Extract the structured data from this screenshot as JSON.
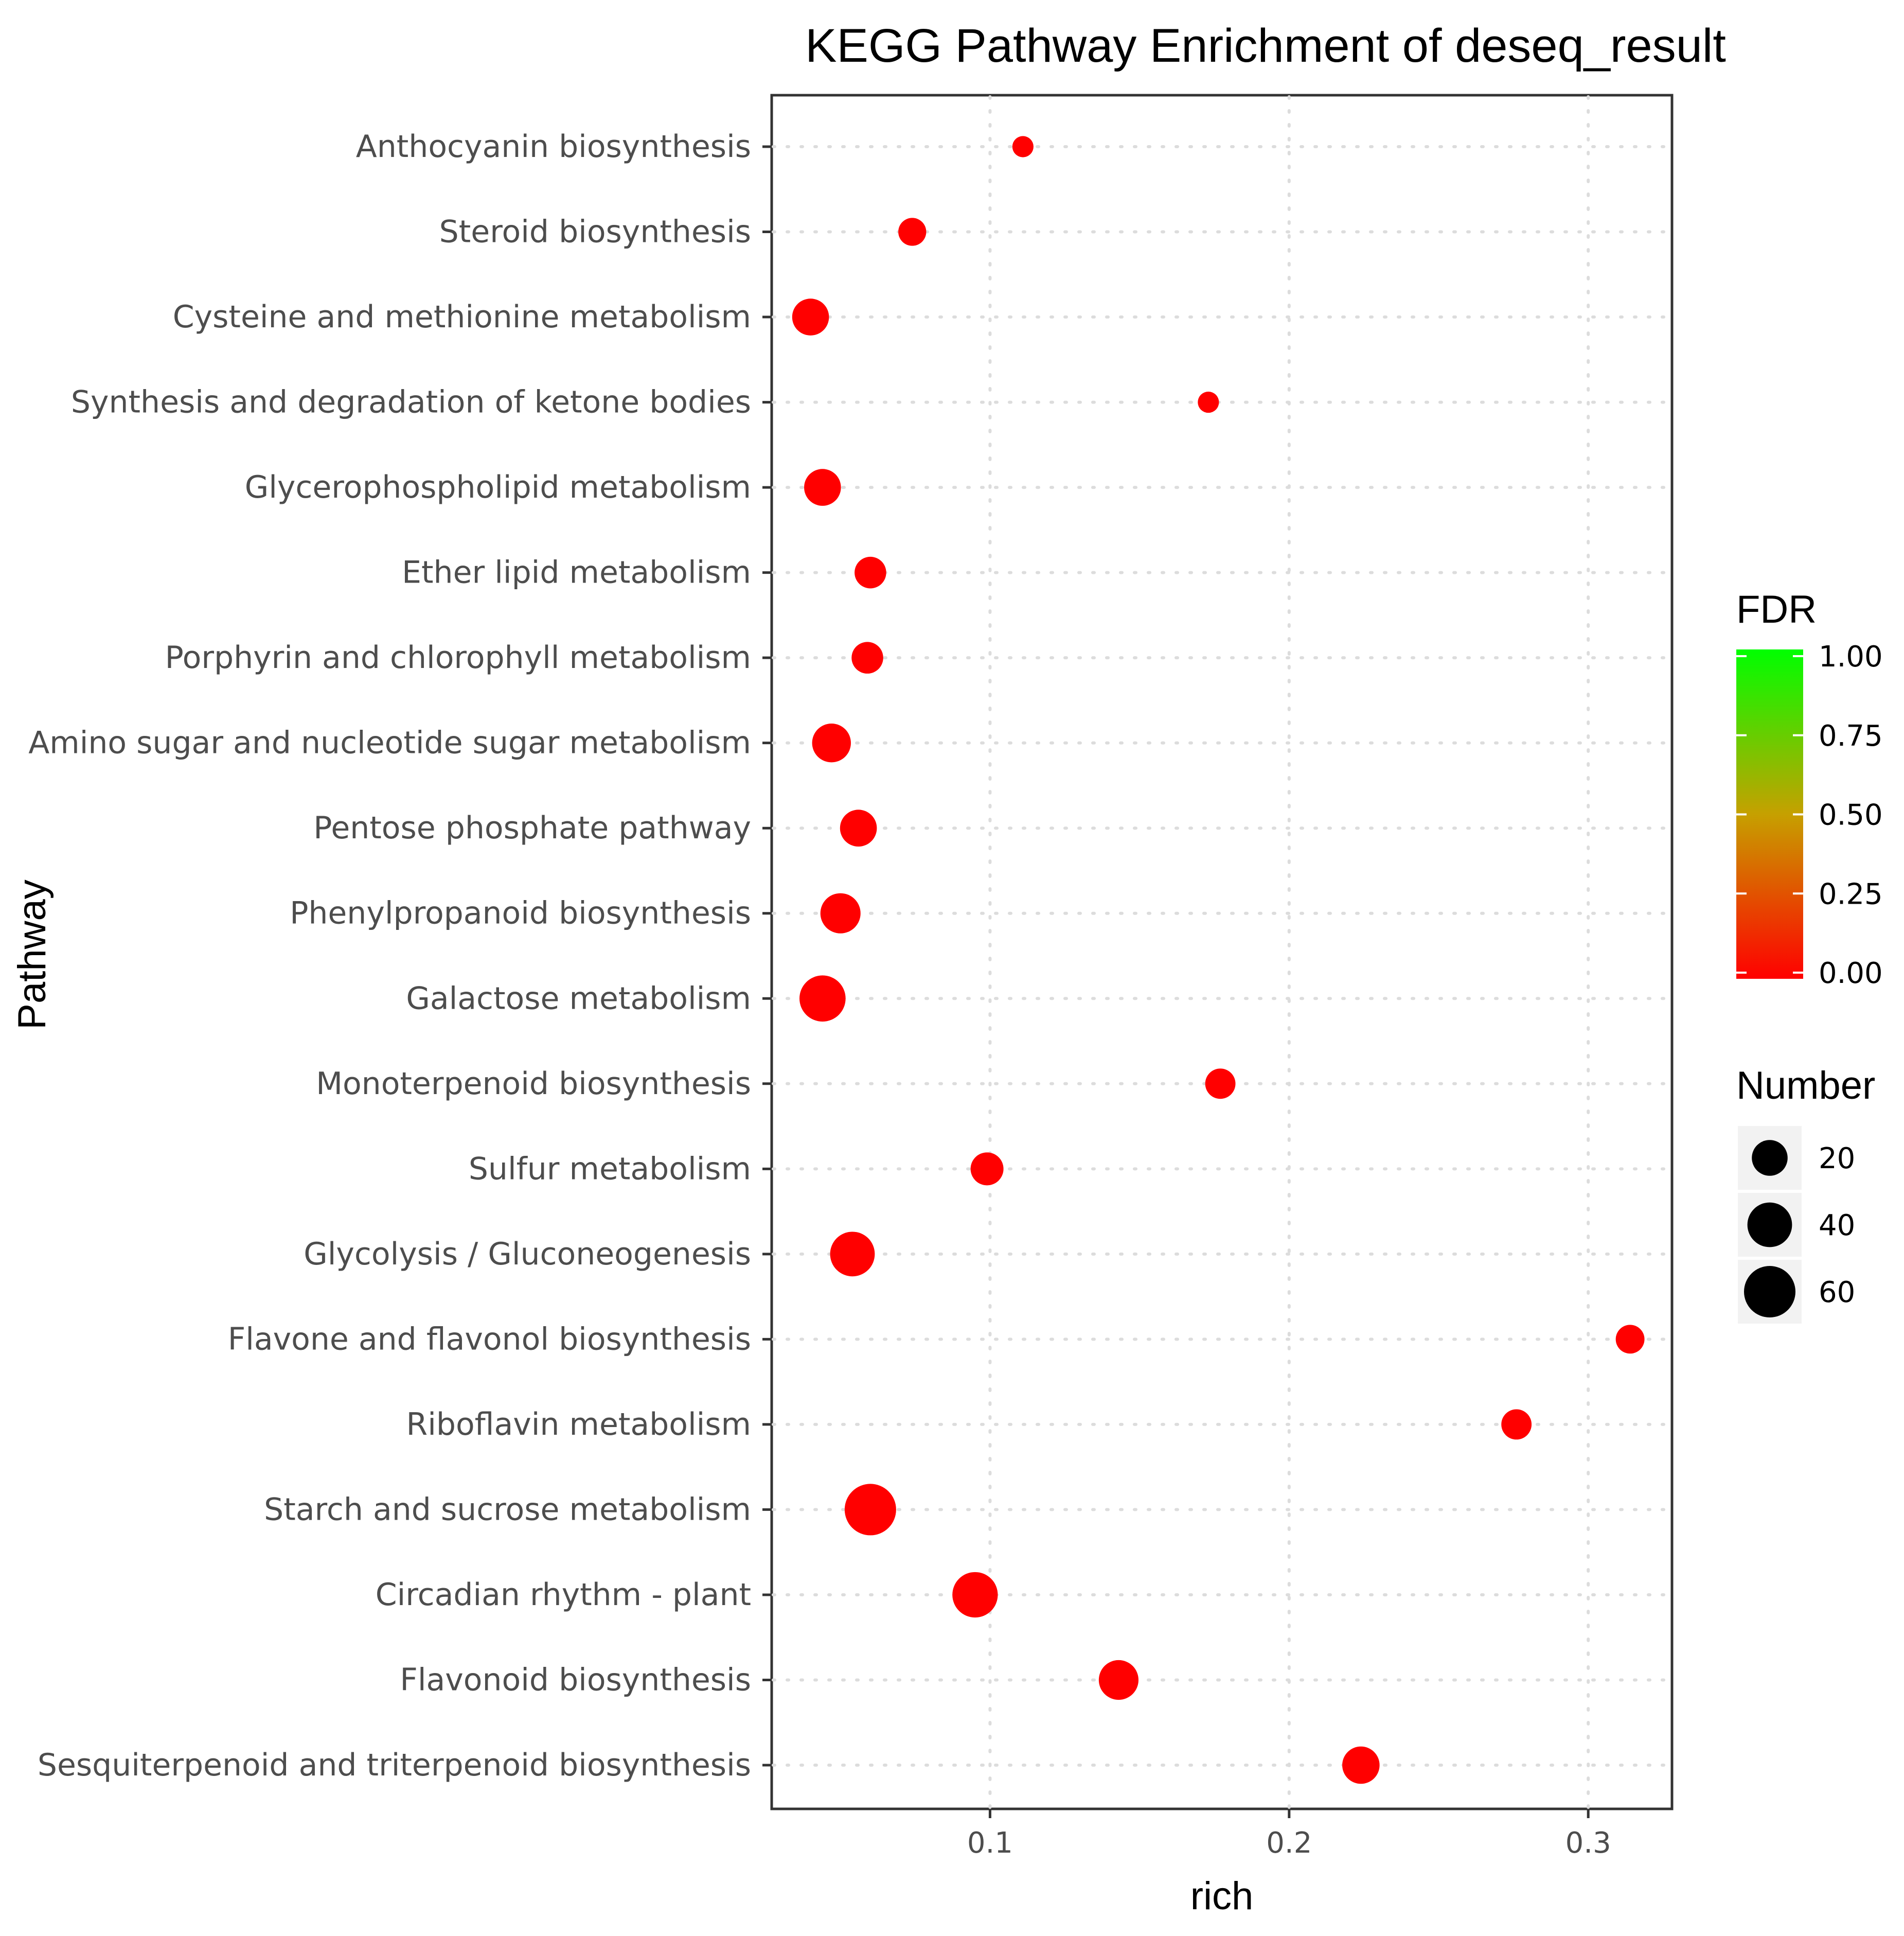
{
  "chart_data": {
    "type": "scatter",
    "title": "KEGG Pathway Enrichment of deseq_result",
    "xlabel": "rich",
    "ylabel": "Pathway",
    "xlim": [
      0.027,
      0.328
    ],
    "x_ticks": [
      {
        "value": 0.1,
        "label": "0.1"
      },
      {
        "value": 0.2,
        "label": "0.2"
      },
      {
        "value": 0.3,
        "label": "0.3"
      }
    ],
    "grid": true,
    "categories": [
      "Anthocyanin biosynthesis",
      "Steroid biosynthesis",
      "Cysteine and methionine metabolism",
      "Synthesis and degradation of ketone bodies",
      "Glycerophospholipid metabolism",
      "Ether lipid metabolism",
      "Porphyrin and chlorophyll metabolism",
      "Amino sugar and nucleotide sugar metabolism",
      "Pentose phosphate pathway",
      "Phenylpropanoid biosynthesis",
      "Galactose metabolism",
      "Monoterpenoid biosynthesis",
      "Sulfur metabolism",
      "Glycolysis / Gluconeogenesis",
      "Flavone and flavonol biosynthesis",
      "Riboflavin metabolism",
      "Starch and sucrose metabolism",
      "Circadian rhythm - plant",
      "Flavonoid biosynthesis",
      "Sesquiterpenoid and triterpenoid biosynthesis"
    ],
    "points": [
      {
        "pathway": "Anthocyanin biosynthesis",
        "rich": 0.111,
        "number": 2,
        "fdr": 0.0
      },
      {
        "pathway": "Steroid biosynthesis",
        "rich": 0.074,
        "number": 8,
        "fdr": 0.0
      },
      {
        "pathway": "Cysteine and methionine metabolism",
        "rich": 0.04,
        "number": 22,
        "fdr": 0.0
      },
      {
        "pathway": "Synthesis and degradation of ketone bodies",
        "rich": 0.173,
        "number": 2,
        "fdr": 0.0
      },
      {
        "pathway": "Glycerophospholipid metabolism",
        "rich": 0.044,
        "number": 22,
        "fdr": 0.0
      },
      {
        "pathway": "Ether lipid metabolism",
        "rich": 0.06,
        "number": 13,
        "fdr": 0.0
      },
      {
        "pathway": "Porphyrin and chlorophyll metabolism",
        "rich": 0.059,
        "number": 13,
        "fdr": 0.0
      },
      {
        "pathway": "Amino sugar and nucleotide sugar metabolism",
        "rich": 0.047,
        "number": 26,
        "fdr": 0.0
      },
      {
        "pathway": "Pentose phosphate pathway",
        "rich": 0.056,
        "number": 22,
        "fdr": 0.0
      },
      {
        "pathway": "Phenylpropanoid biosynthesis",
        "rich": 0.05,
        "number": 29,
        "fdr": 0.0
      },
      {
        "pathway": "Galactose metabolism",
        "rich": 0.044,
        "number": 44,
        "fdr": 0.0
      },
      {
        "pathway": "Monoterpenoid biosynthesis",
        "rich": 0.177,
        "number": 11,
        "fdr": 0.0
      },
      {
        "pathway": "Sulfur metabolism",
        "rich": 0.099,
        "number": 15,
        "fdr": 0.0
      },
      {
        "pathway": "Glycolysis / Gluconeogenesis",
        "rich": 0.054,
        "number": 40,
        "fdr": 0.0
      },
      {
        "pathway": "Flavone and flavonol biosynthesis",
        "rich": 0.314,
        "number": 9,
        "fdr": 0.0
      },
      {
        "pathway": "Riboflavin metabolism",
        "rich": 0.276,
        "number": 11,
        "fdr": 0.0
      },
      {
        "pathway": "Starch and sucrose metabolism",
        "rich": 0.06,
        "number": 60,
        "fdr": 0.0
      },
      {
        "pathway": "Circadian rhythm - plant",
        "rich": 0.095,
        "number": 42,
        "fdr": 0.0
      },
      {
        "pathway": "Flavonoid biosynthesis",
        "rich": 0.143,
        "number": 28,
        "fdr": 0.0
      },
      {
        "pathway": "Sesquiterpenoid and triterpenoid biosynthesis",
        "rich": 0.224,
        "number": 23,
        "fdr": 0.0
      }
    ],
    "color_legend": {
      "title": "FDR",
      "ticks": [
        "1.00",
        "0.75",
        "0.50",
        "0.25",
        "0.00"
      ],
      "low_color": "#ff0000",
      "high_color": "#00ff00"
    },
    "size_legend": {
      "title": "Number",
      "entries": [
        {
          "value": 20,
          "label": "20"
        },
        {
          "value": 40,
          "label": "40"
        },
        {
          "value": 60,
          "label": "60"
        }
      ]
    },
    "point_color": "#ff0000",
    "legend_position": "right"
  }
}
